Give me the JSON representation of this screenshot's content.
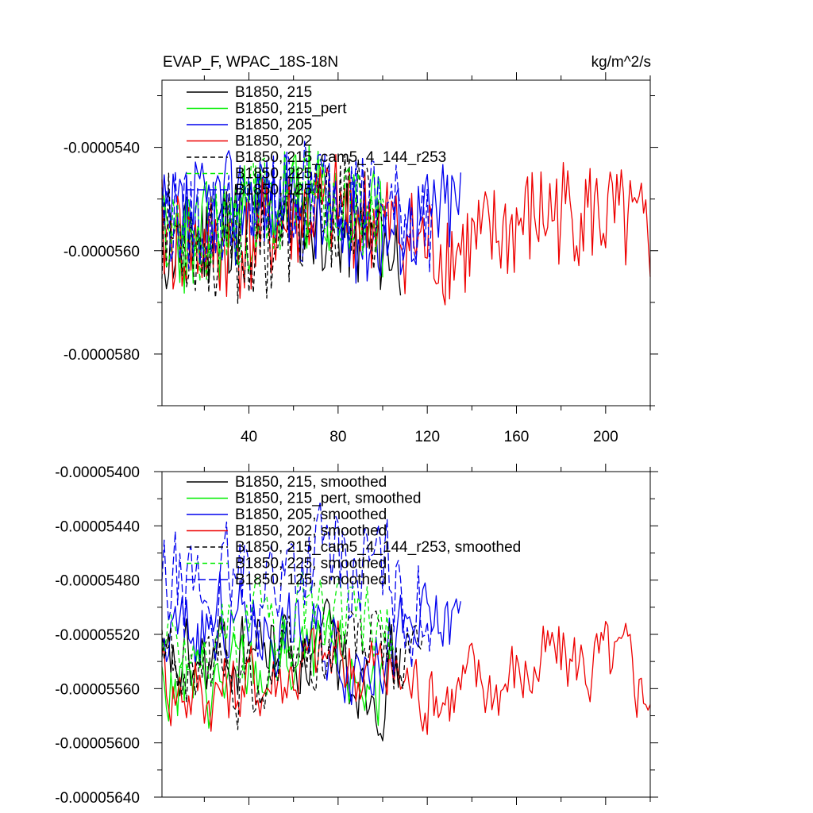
{
  "chart_data": [
    {
      "type": "line",
      "title": "EVAP_F, WPAC_18S-18N",
      "units": "kg/m^2/s",
      "xlabel": "",
      "ylabel": "",
      "xlim": [
        1,
        220
      ],
      "ylim": [
        -5.9e-05,
        -5.27e-05
      ],
      "xticks": [
        40,
        80,
        120,
        160,
        200
      ],
      "xtick_labels": [
        "40",
        "80",
        "120",
        "160",
        "200"
      ],
      "yticks": [
        -5.4e-05,
        -5.6e-05,
        -5.8e-05
      ],
      "ytick_labels": [
        "-0.0000540",
        "-0.0000560",
        "-0.0000580"
      ],
      "legend_position": "top-left",
      "series": [
        {
          "name": "B1850, 215",
          "color": "#000000",
          "dash": "",
          "x_end": 108,
          "base": -5.56e-05,
          "amp": 1e-06,
          "seed": 11
        },
        {
          "name": "B1850, 215_pert",
          "color": "#00ee00",
          "dash": "",
          "x_end": 100,
          "base": -5.54e-05,
          "amp": 1.1e-06,
          "seed": 23
        },
        {
          "name": "B1850, 205",
          "color": "#0000ee",
          "dash": "",
          "x_end": 135,
          "base": -5.53e-05,
          "amp": 1e-06,
          "seed": 37
        },
        {
          "name": "B1850, 202",
          "color": "#ee0000",
          "dash": "",
          "x_end": 220,
          "base": -5.56e-05,
          "amp": 1.1e-06,
          "seed": 41
        },
        {
          "name": "B1850, 215_cam5_4_144_r253",
          "color": "#000000",
          "dash": "6,4",
          "x_end": 100,
          "base": -5.56e-05,
          "amp": 1.1e-06,
          "seed": 53
        },
        {
          "name": "B1850, 225",
          "color": "#00ee00",
          "dash": "6,4",
          "x_end": 102,
          "base": -5.53e-05,
          "amp": 1e-06,
          "seed": 67
        },
        {
          "name": "B1850, 125",
          "color": "#0000ee",
          "dash": "10,4",
          "x_end": 122,
          "base": -5.51e-05,
          "amp": 1e-06,
          "seed": 79
        }
      ]
    },
    {
      "type": "line",
      "title": "",
      "xlabel": "",
      "ylabel": "",
      "xlim": [
        1,
        220
      ],
      "ylim": [
        -5.64e-05,
        -5.4e-05
      ],
      "xticks": [
        40,
        80,
        120,
        160,
        200
      ],
      "xtick_labels": [],
      "yticks": [
        -5.4e-05,
        -5.44e-05,
        -5.48e-05,
        -5.52e-05,
        -5.56e-05,
        -5.6e-05,
        -5.64e-05
      ],
      "ytick_labels": [
        "-0.00005400",
        "-0.00005440",
        "-0.00005480",
        "-0.00005520",
        "-0.00005560",
        "-0.00005600",
        "-0.00005640"
      ],
      "legend_position": "top-left",
      "series": [
        {
          "name": "B1850, 215, smoothed",
          "color": "#000000",
          "dash": "",
          "x_end": 108,
          "base": -5.54e-05,
          "amp": 3e-07,
          "seed": 11
        },
        {
          "name": "B1850, 215_pert, smoothed",
          "color": "#00ee00",
          "dash": "",
          "x_end": 100,
          "base": -5.55e-05,
          "amp": 3e-07,
          "seed": 23
        },
        {
          "name": "B1850, 205, smoothed",
          "color": "#0000ee",
          "dash": "",
          "x_end": 135,
          "base": -5.52e-05,
          "amp": 3e-07,
          "seed": 37
        },
        {
          "name": "B1850, 202, smoothed",
          "color": "#ee0000",
          "dash": "",
          "x_end": 220,
          "base": -5.55e-05,
          "amp": 3e-07,
          "seed": 41
        },
        {
          "name": "B1850, 215_cam5_4_144_r253, smoothed",
          "color": "#000000",
          "dash": "6,4",
          "x_end": 118,
          "base": -5.54e-05,
          "amp": 3e-07,
          "seed": 53
        },
        {
          "name": "B1850, 225, smoothed",
          "color": "#00ee00",
          "dash": "6,4",
          "x_end": 105,
          "base": -5.52e-05,
          "amp": 3e-07,
          "seed": 67
        },
        {
          "name": "B1850, 125, smoothed",
          "color": "#0000ee",
          "dash": "10,4",
          "x_end": 122,
          "base": -5.48e-05,
          "amp": 4e-07,
          "seed": 79
        }
      ]
    }
  ]
}
